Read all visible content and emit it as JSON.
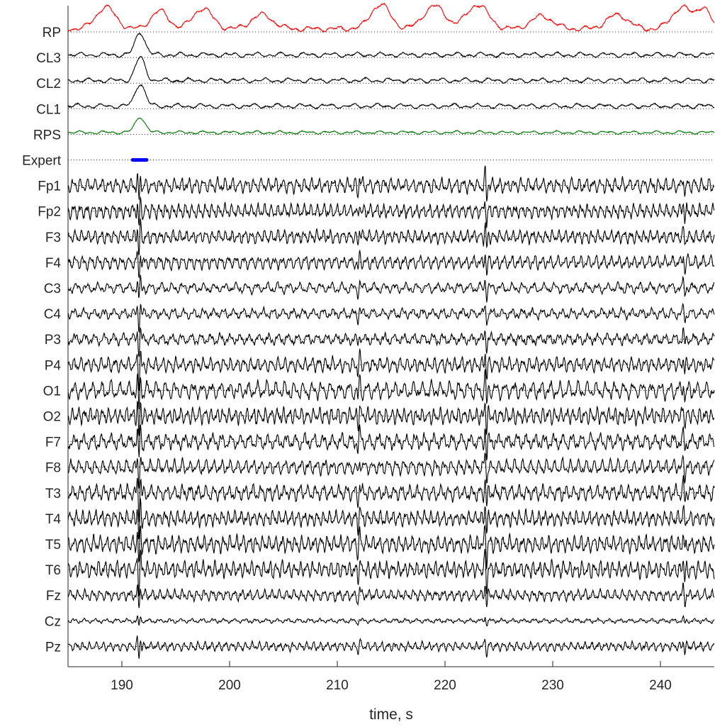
{
  "chart_data": {
    "type": "line",
    "xlabel": "time, s",
    "xlim": [
      185,
      245
    ],
    "xticks": [
      190,
      200,
      210,
      220,
      230,
      240
    ],
    "xtick_labels": [
      "190",
      "200",
      "210",
      "220",
      "230",
      "240"
    ],
    "grid": false,
    "expert_marker": {
      "channel": "Expert",
      "x_start": 191.0,
      "x_end": 192.3,
      "color": "#0000ff"
    },
    "colors": {
      "RP": "#ff0000",
      "RPS": "#007700",
      "default": "#000000",
      "expert": "#0000ff",
      "axis": "#262626"
    },
    "channels": [
      {
        "name": "RP",
        "kind": "score",
        "color": "#ff0000",
        "peaks": [
          [
            188.5,
            0.85,
            0.9
          ],
          [
            193.5,
            0.7,
            0.8
          ],
          [
            197.5,
            0.8,
            0.9
          ],
          [
            203,
            0.55,
            1.0
          ],
          [
            214,
            0.95,
            0.9
          ],
          [
            219,
            0.9,
            1.0
          ],
          [
            223,
            0.95,
            1.0
          ],
          [
            229,
            0.5,
            1.0
          ],
          [
            236,
            0.55,
            1.0
          ],
          [
            242,
            0.85,
            0.9
          ],
          [
            244,
            0.8,
            0.6
          ]
        ],
        "amp": 36
      },
      {
        "name": "CL3",
        "kind": "score",
        "color": "#000000",
        "peaks": [
          [
            191.7,
            1.0,
            0.45
          ]
        ],
        "amp": 32
      },
      {
        "name": "CL2",
        "kind": "score",
        "color": "#000000",
        "peaks": [
          [
            191.7,
            1.0,
            0.45
          ]
        ],
        "amp": 32
      },
      {
        "name": "CL1",
        "kind": "score",
        "color": "#000000",
        "peaks": [
          [
            191.7,
            1.0,
            0.45
          ]
        ],
        "amp": 32
      },
      {
        "name": "RPS",
        "kind": "score",
        "color": "#007700",
        "peaks": [
          [
            191.7,
            1.0,
            0.45
          ]
        ],
        "amp": 22
      },
      {
        "name": "Expert",
        "kind": "marker"
      },
      {
        "name": "Fp1",
        "kind": "eeg",
        "amp": 13
      },
      {
        "name": "Fp2",
        "kind": "eeg",
        "amp": 13
      },
      {
        "name": "F3",
        "kind": "eeg",
        "amp": 12
      },
      {
        "name": "F4",
        "kind": "eeg",
        "amp": 12
      },
      {
        "name": "C3",
        "kind": "eeg",
        "amp": 9
      },
      {
        "name": "C4",
        "kind": "eeg",
        "amp": 9
      },
      {
        "name": "P3",
        "kind": "eeg",
        "amp": 10
      },
      {
        "name": "P4",
        "kind": "eeg",
        "amp": 13
      },
      {
        "name": "O1",
        "kind": "eeg",
        "amp": 15
      },
      {
        "name": "O2",
        "kind": "eeg",
        "amp": 15
      },
      {
        "name": "F7",
        "kind": "eeg",
        "amp": 14
      },
      {
        "name": "F8",
        "kind": "eeg",
        "amp": 13
      },
      {
        "name": "T3",
        "kind": "eeg",
        "amp": 14
      },
      {
        "name": "T4",
        "kind": "eeg",
        "amp": 14
      },
      {
        "name": "T5",
        "kind": "eeg",
        "amp": 15
      },
      {
        "name": "T6",
        "kind": "eeg",
        "amp": 15
      },
      {
        "name": "Fz",
        "kind": "eeg",
        "amp": 10
      },
      {
        "name": "Cz",
        "kind": "eeg",
        "amp": 4
      },
      {
        "name": "Pz",
        "kind": "eeg",
        "amp": 8
      }
    ]
  }
}
